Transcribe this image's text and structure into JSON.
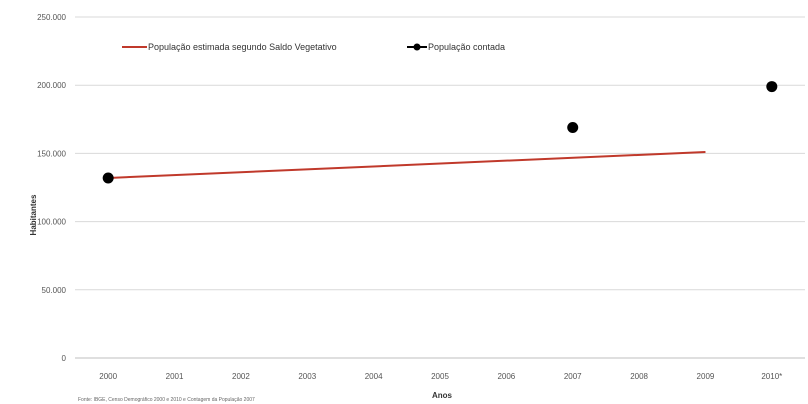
{
  "chart_data": {
    "type": "line",
    "title": "",
    "xlabel": "Anos",
    "ylabel": "Habitantes",
    "categories": [
      "2000",
      "2001",
      "2002",
      "2003",
      "2004",
      "2005",
      "2006",
      "2007",
      "2008",
      "2009",
      "2010*"
    ],
    "y_ticks": [
      "0",
      "50.000",
      "100.000",
      "150.000",
      "200.000",
      "250.000"
    ],
    "ylim": [
      0,
      250000
    ],
    "grid": true,
    "legend_position": "top-left",
    "series": [
      {
        "name": "População estimada segundo Saldo Vegetativo",
        "style": "line",
        "color": "#c0392b",
        "points": [
          {
            "x": "2000",
            "y": 132000
          },
          {
            "x": "2009",
            "y": 151000
          }
        ]
      },
      {
        "name": "População contada",
        "style": "markers",
        "color": "#000000",
        "points": [
          {
            "x": "2000",
            "y": 132000
          },
          {
            "x": "2007",
            "y": 169000
          },
          {
            "x": "2010*",
            "y": 199000
          }
        ]
      }
    ],
    "source_note": "Fonte: IBGE, Censo Demográfico 2000 e 2010 e Contagem da População 2007"
  }
}
